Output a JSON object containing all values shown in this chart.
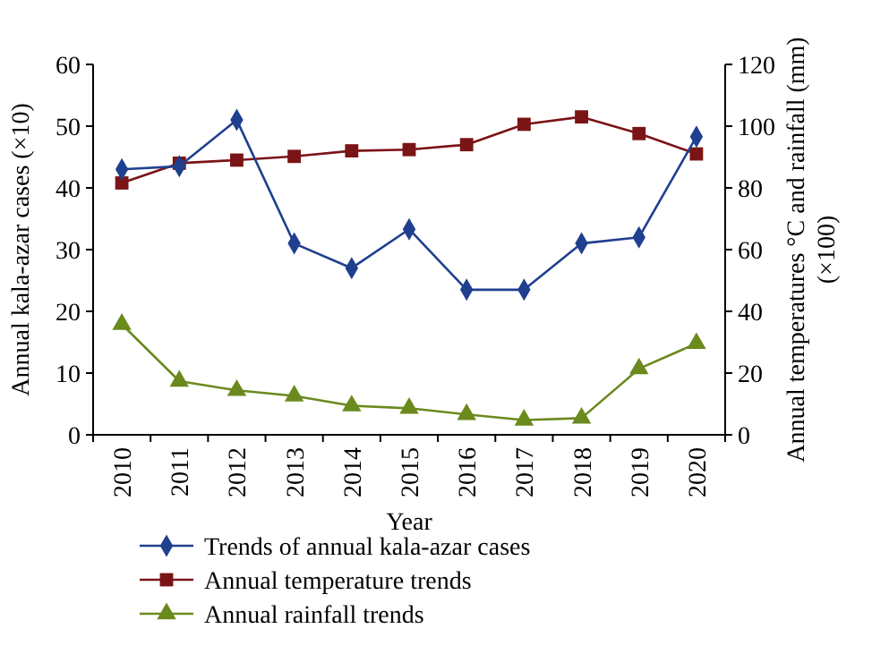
{
  "chart_data": {
    "type": "line",
    "xlabel": "Year",
    "ylabel": "Annual kala-azar cases (×10)",
    "y2label": "Annual temperatures °C and rainfall (mm) (×100)",
    "categories": [
      "2010",
      "2011",
      "2012",
      "2013",
      "2014",
      "2015",
      "2016",
      "2017",
      "2018",
      "2019",
      "2020"
    ],
    "series": [
      {
        "name": "Trends of annual kala-azar cases",
        "color": "#1f3f8f",
        "marker": "diamond",
        "values": [
          43,
          43.5,
          51,
          31,
          27,
          33.3,
          23.5,
          23.5,
          31,
          32,
          48.3
        ]
      },
      {
        "name": "Annual temperature trends",
        "color": "#7b1416",
        "marker": "square",
        "axis": "y2",
        "values": [
          81.6,
          88,
          89,
          90.2,
          92,
          92.4,
          94,
          100.6,
          103,
          97.6,
          91
        ]
      },
      {
        "name": "Annual rainfall trends",
        "color": "#6b8a1e",
        "marker": "triangle",
        "axis": "y2",
        "values": [
          35.8,
          17.4,
          14.4,
          12.6,
          9.4,
          8.6,
          6.6,
          4.8,
          5.4,
          21.4,
          29.6
        ]
      }
    ],
    "ylim": [
      0,
      60
    ],
    "yticks": [
      0,
      10,
      20,
      30,
      40,
      50,
      60
    ],
    "y2lim": [
      0,
      120
    ],
    "y2ticks": [
      0,
      20,
      40,
      60,
      80,
      100,
      120
    ],
    "grid": false,
    "legend": "bottom"
  }
}
